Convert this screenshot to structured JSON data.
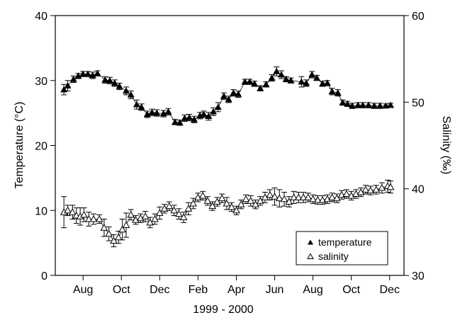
{
  "chart_data": {
    "type": "scatter",
    "xlabel": "1999 - 2000",
    "ylabel_left": "Temperature (°C)",
    "ylabel_right": "Salinity (‰)",
    "x_unit": "months since 1999-07-01",
    "xlim": [
      -0.45,
      17.75
    ],
    "x_ticks": [
      {
        "pos": 1,
        "label": "Aug"
      },
      {
        "pos": 3,
        "label": "Oct"
      },
      {
        "pos": 5,
        "label": "Dec"
      },
      {
        "pos": 7,
        "label": "Feb"
      },
      {
        "pos": 9,
        "label": "Apr"
      },
      {
        "pos": 11,
        "label": "Jun"
      },
      {
        "pos": 13,
        "label": "Aug"
      },
      {
        "pos": 15,
        "label": "Oct"
      },
      {
        "pos": 17,
        "label": "Dec"
      }
    ],
    "ylim_left": [
      0,
      40
    ],
    "yticks_left": [
      0,
      10,
      20,
      30,
      40
    ],
    "ylim_right": [
      30,
      60
    ],
    "yticks_right": [
      30,
      40,
      50,
      60
    ],
    "legend_position": "bottom-right",
    "series": [
      {
        "name": "temperature",
        "axis": "left",
        "marker": "filled-triangle",
        "points": [
          [
            0.0,
            28.6,
            0.8
          ],
          [
            0.2,
            29.2,
            0.8
          ],
          [
            0.5,
            30.2,
            0.5
          ],
          [
            0.75,
            30.7,
            0.4
          ],
          [
            1.0,
            31.0,
            0.4
          ],
          [
            1.25,
            31.0,
            0.4
          ],
          [
            1.5,
            30.8,
            0.5
          ],
          [
            1.75,
            31.1,
            0.4
          ],
          [
            2.15,
            30.1,
            0.5
          ],
          [
            2.4,
            30.0,
            0.5
          ],
          [
            2.65,
            29.6,
            0.5
          ],
          [
            2.9,
            29.1,
            0.5
          ],
          [
            3.25,
            28.4,
            0.6
          ],
          [
            3.5,
            27.8,
            0.6
          ],
          [
            3.8,
            26.3,
            0.7
          ],
          [
            4.05,
            25.9,
            0.5
          ],
          [
            4.35,
            24.8,
            0.5
          ],
          [
            4.6,
            25.1,
            0.5
          ],
          [
            4.85,
            25.0,
            0.5
          ],
          [
            5.2,
            24.9,
            0.5
          ],
          [
            5.45,
            25.2,
            0.5
          ],
          [
            5.8,
            23.6,
            0.4
          ],
          [
            6.05,
            23.5,
            0.4
          ],
          [
            6.3,
            24.2,
            0.5
          ],
          [
            6.55,
            24.3,
            0.5
          ],
          [
            6.8,
            24.0,
            0.5
          ],
          [
            7.1,
            24.6,
            0.5
          ],
          [
            7.3,
            24.8,
            0.5
          ],
          [
            7.55,
            24.5,
            0.6
          ],
          [
            7.8,
            25.2,
            0.6
          ],
          [
            8.05,
            25.9,
            0.7
          ],
          [
            8.35,
            27.6,
            0.5
          ],
          [
            8.6,
            27.1,
            0.5
          ],
          [
            8.85,
            28.1,
            0.5
          ],
          [
            9.1,
            27.9,
            0.5
          ],
          [
            9.45,
            29.8,
            0.4
          ],
          [
            9.7,
            29.8,
            0.4
          ],
          [
            9.95,
            29.5,
            0.4
          ],
          [
            10.25,
            28.8,
            0.4
          ],
          [
            10.55,
            29.4,
            0.4
          ],
          [
            10.85,
            30.4,
            0.5
          ],
          [
            11.1,
            31.4,
            0.7
          ],
          [
            11.35,
            30.9,
            0.6
          ],
          [
            11.6,
            30.2,
            0.4
          ],
          [
            11.85,
            30.0,
            0.4
          ],
          [
            12.4,
            29.8,
            0.8
          ],
          [
            12.65,
            29.6,
            0.5
          ],
          [
            12.95,
            30.9,
            0.5
          ],
          [
            13.2,
            30.4,
            0.4
          ],
          [
            13.5,
            29.5,
            0.4
          ],
          [
            13.75,
            29.6,
            0.4
          ],
          [
            14.0,
            28.3,
            0.5
          ],
          [
            14.3,
            28.1,
            0.5
          ],
          [
            14.55,
            26.6,
            0.4
          ],
          [
            14.8,
            26.4,
            0.4
          ],
          [
            15.05,
            26.1,
            0.4
          ],
          [
            15.35,
            26.2,
            0.4
          ],
          [
            15.6,
            26.2,
            0.4
          ],
          [
            15.9,
            26.2,
            0.4
          ],
          [
            16.2,
            26.1,
            0.4
          ],
          [
            16.5,
            26.1,
            0.4
          ],
          [
            16.8,
            26.1,
            0.3
          ],
          [
            17.05,
            26.2,
            0.3
          ]
        ]
      },
      {
        "name": "salinity",
        "axis": "right",
        "marker": "open-triangle",
        "points": [
          [
            0.0,
            37.3,
            1.8
          ],
          [
            0.2,
            37.5,
            0.6
          ],
          [
            0.45,
            37.3,
            0.8
          ],
          [
            0.65,
            36.9,
            0.9
          ],
          [
            0.85,
            36.8,
            1.0
          ],
          [
            1.05,
            37.0,
            0.8
          ],
          [
            1.3,
            36.5,
            0.8
          ],
          [
            1.55,
            36.5,
            0.6
          ],
          [
            1.85,
            36.5,
            0.5
          ],
          [
            2.1,
            35.5,
            1.0
          ],
          [
            2.35,
            34.8,
            0.8
          ],
          [
            2.6,
            34.0,
            0.7
          ],
          [
            2.85,
            34.4,
            0.7
          ],
          [
            3.05,
            35.3,
            1.2
          ],
          [
            3.25,
            35.8,
            1.4
          ],
          [
            3.5,
            37.0,
            0.6
          ],
          [
            3.75,
            36.4,
            0.5
          ],
          [
            4.0,
            36.6,
            0.5
          ],
          [
            4.25,
            36.8,
            0.6
          ],
          [
            4.5,
            36.1,
            0.6
          ],
          [
            4.75,
            36.5,
            0.6
          ],
          [
            5.0,
            37.2,
            0.7
          ],
          [
            5.25,
            37.7,
            0.5
          ],
          [
            5.5,
            38.0,
            0.5
          ],
          [
            5.75,
            37.5,
            0.6
          ],
          [
            6.0,
            37.1,
            0.6
          ],
          [
            6.25,
            36.7,
            0.6
          ],
          [
            6.5,
            37.7,
            0.7
          ],
          [
            6.75,
            38.3,
            0.6
          ],
          [
            7.0,
            39.0,
            0.5
          ],
          [
            7.25,
            39.2,
            0.5
          ],
          [
            7.5,
            38.6,
            0.5
          ],
          [
            7.75,
            38.0,
            0.5
          ],
          [
            8.0,
            38.5,
            0.5
          ],
          [
            8.25,
            38.9,
            0.5
          ],
          [
            8.5,
            38.3,
            0.7
          ],
          [
            8.75,
            37.9,
            0.5
          ],
          [
            9.0,
            37.5,
            0.5
          ],
          [
            9.25,
            38.2,
            0.5
          ],
          [
            9.5,
            38.8,
            0.5
          ],
          [
            9.75,
            38.6,
            0.6
          ],
          [
            10.0,
            38.2,
            0.5
          ],
          [
            10.25,
            38.6,
            0.5
          ],
          [
            10.5,
            39.0,
            0.6
          ],
          [
            10.75,
            39.3,
            0.6
          ],
          [
            11.0,
            39.1,
            1.0
          ],
          [
            11.25,
            38.9,
            1.0
          ],
          [
            11.5,
            38.8,
            0.8
          ],
          [
            11.75,
            38.5,
            0.6
          ],
          [
            12.0,
            39.0,
            0.7
          ],
          [
            12.25,
            39.0,
            0.6
          ],
          [
            12.5,
            39.0,
            0.6
          ],
          [
            12.75,
            39.0,
            0.5
          ],
          [
            13.0,
            38.8,
            0.5
          ],
          [
            13.25,
            38.7,
            0.5
          ],
          [
            13.5,
            38.7,
            0.5
          ],
          [
            13.75,
            38.8,
            0.5
          ],
          [
            14.0,
            39.0,
            0.5
          ],
          [
            14.25,
            38.9,
            0.5
          ],
          [
            14.5,
            39.3,
            0.5
          ],
          [
            14.75,
            39.4,
            0.5
          ],
          [
            15.0,
            39.2,
            0.5
          ],
          [
            15.25,
            39.4,
            0.5
          ],
          [
            15.5,
            39.6,
            0.5
          ],
          [
            15.75,
            39.9,
            0.5
          ],
          [
            16.0,
            39.8,
            0.5
          ],
          [
            16.3,
            39.9,
            0.5
          ],
          [
            16.6,
            40.1,
            0.6
          ],
          [
            16.9,
            40.3,
            0.7
          ],
          [
            17.05,
            40.2,
            0.7
          ]
        ]
      }
    ]
  }
}
